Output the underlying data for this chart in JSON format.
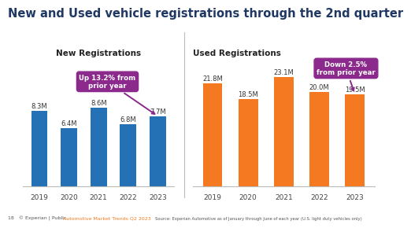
{
  "title": "New and Used vehicle registrations through the 2nd quarter",
  "title_fontsize": 10.5,
  "new_subtitle": "New Registrations",
  "used_subtitle": "Used Registrations",
  "new_years": [
    "2019",
    "2020",
    "2021",
    "2022",
    "2023"
  ],
  "new_values": [
    8.3,
    6.4,
    8.6,
    6.8,
    7.7
  ],
  "new_labels": [
    "8.3M",
    "6.4M",
    "8.6M",
    "6.8M",
    "7.7M"
  ],
  "used_years": [
    "2019",
    "2020",
    "2021",
    "2022",
    "2023"
  ],
  "used_values": [
    21.8,
    18.5,
    23.1,
    20.0,
    19.5
  ],
  "used_labels": [
    "21.8M",
    "18.5M",
    "23.1M",
    "20.0M",
    "19.5M"
  ],
  "new_bar_color": "#2472B5",
  "used_bar_color": "#F47920",
  "bg_color": "#FFFFFF",
  "annotation_bg": "#8B2A8C",
  "annotation_text_color": "#FFFFFF",
  "new_annotation": "Up 13.2% from\nprior year",
  "used_annotation": "Down 2.5%\nfrom prior year",
  "footer_left": "18   © Experian | Public.",
  "footer_mid": "Automotive Market Trends Q2 2023",
  "footer_right": "Source: Experian Automotive as of January through June of each year (U.S. light duty vehicles only)",
  "ylim_new": [
    0,
    14
  ],
  "ylim_used": [
    0,
    27
  ],
  "title_color": "#1F3864"
}
